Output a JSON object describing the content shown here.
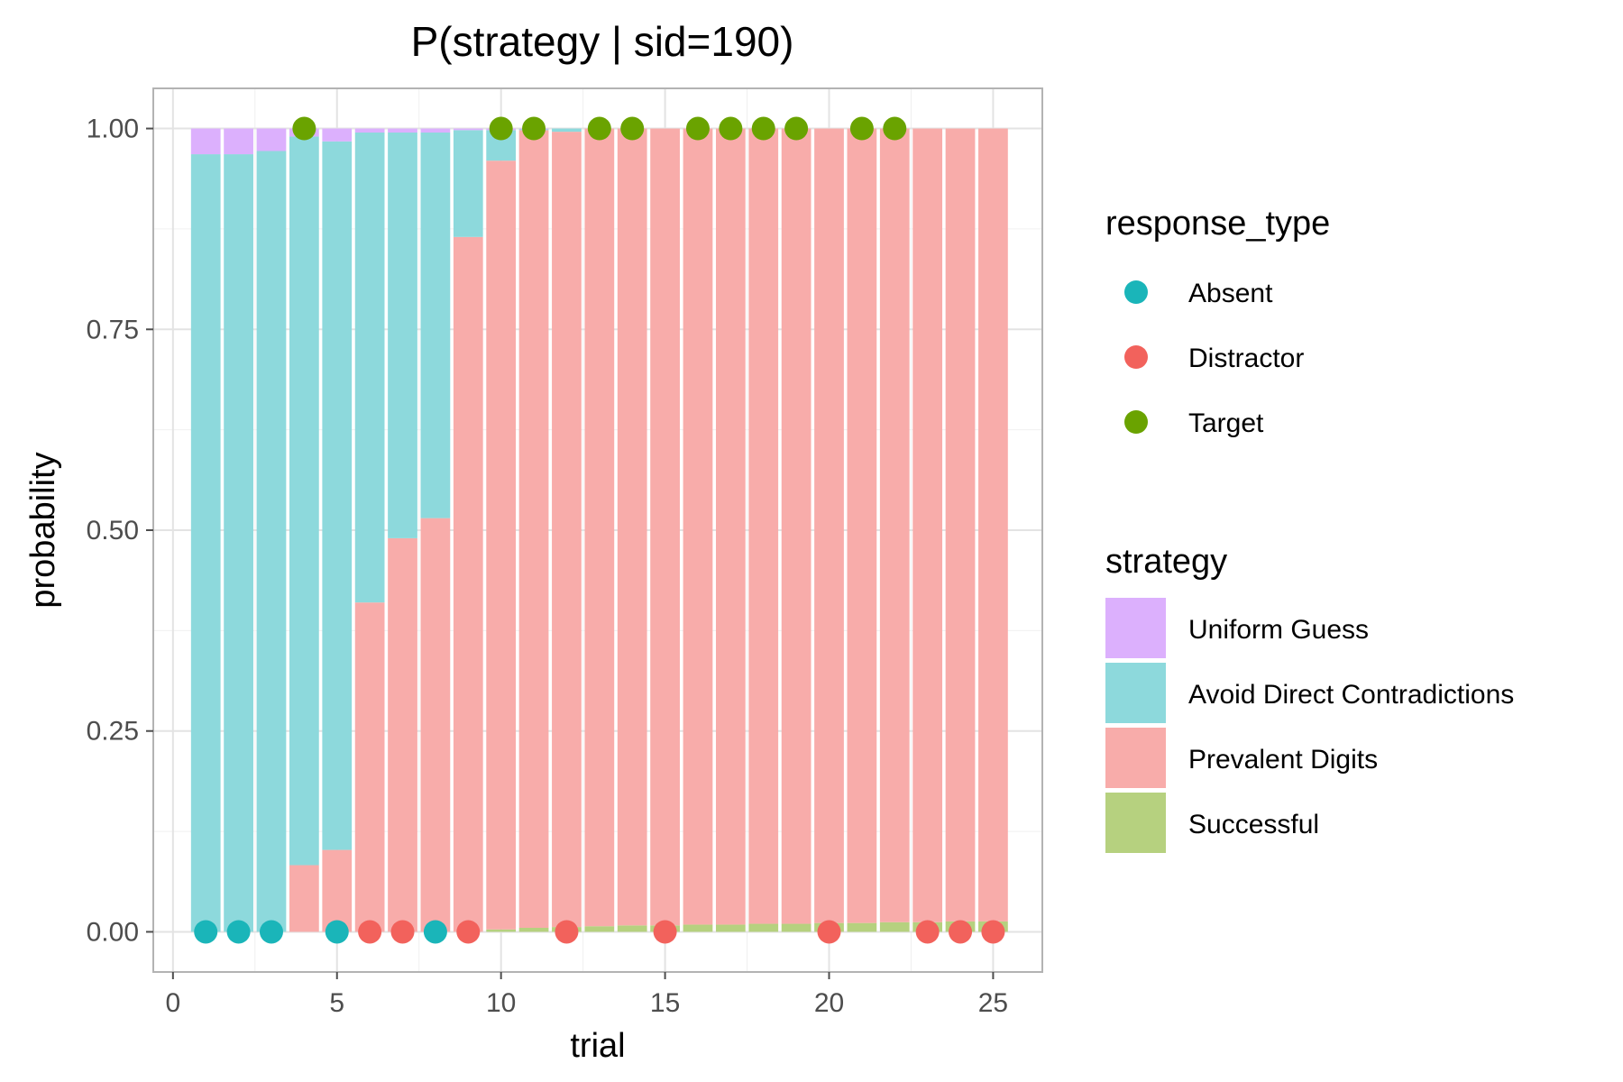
{
  "chart_data": {
    "type": "bar",
    "subtype": "stacked-bar-with-points",
    "title": "P(strategy | sid=190)",
    "xlabel": "trial",
    "ylabel": "probability",
    "xlim": [
      -0.6,
      26.5
    ],
    "ylim": [
      -0.05,
      1.05
    ],
    "x_ticks": [
      0,
      5,
      10,
      15,
      20,
      25
    ],
    "x_tick_labels": [
      "0",
      "5",
      "10",
      "15",
      "20",
      "25"
    ],
    "y_ticks": [
      0,
      0.25,
      0.5,
      0.75,
      1
    ],
    "y_tick_labels": [
      "0.00",
      "0.25",
      "0.50",
      "0.75",
      "1.00"
    ],
    "grid": true,
    "legend_position": "right",
    "x": [
      1,
      2,
      3,
      4,
      5,
      6,
      7,
      8,
      9,
      10,
      11,
      12,
      13,
      14,
      15,
      16,
      17,
      18,
      19,
      20,
      21,
      22,
      23,
      24,
      25
    ],
    "series": [
      {
        "name": "Successful",
        "color": "#b6d17f",
        "values": [
          0,
          0,
          0,
          0,
          0,
          0,
          0,
          0,
          0,
          0.003,
          0.005,
          0.006,
          0.007,
          0.008,
          0.008,
          0.009,
          0.009,
          0.01,
          0.01,
          0.011,
          0.011,
          0.012,
          0.012,
          0.013,
          0.013
        ]
      },
      {
        "name": "Prevalent Digits",
        "color": "#f8acaa",
        "values": [
          0,
          0,
          0,
          0.083,
          0.102,
          0.41,
          0.49,
          0.515,
          0.865,
          0.957,
          0.993,
          0.99,
          0.993,
          0.992,
          0.992,
          0.991,
          0.991,
          0.99,
          0.99,
          0.989,
          0.989,
          0.988,
          0.988,
          0.987,
          0.987
        ]
      },
      {
        "name": "Avoid Direct Contradictions",
        "color": "#8dd9dc",
        "values": [
          0.968,
          0.968,
          0.972,
          0.907,
          0.882,
          0.585,
          0.505,
          0.48,
          0.133,
          0.038,
          0.001,
          0.004,
          0,
          0,
          0,
          0,
          0,
          0,
          0,
          0,
          0,
          0,
          0,
          0,
          0
        ]
      },
      {
        "name": "Uniform Guess",
        "color": "#dcb0fd",
        "values": [
          0.032,
          0.032,
          0.028,
          0.01,
          0.016,
          0.005,
          0.005,
          0.005,
          0.002,
          0.002,
          0.001,
          0,
          0,
          0,
          0,
          0,
          0,
          0,
          0,
          0,
          0,
          0,
          0,
          0,
          0
        ]
      }
    ],
    "points": [
      {
        "x": 1,
        "y": 0,
        "response": "Absent"
      },
      {
        "x": 2,
        "y": 0,
        "response": "Absent"
      },
      {
        "x": 3,
        "y": 0,
        "response": "Absent"
      },
      {
        "x": 4,
        "y": 1,
        "response": "Target"
      },
      {
        "x": 5,
        "y": 0,
        "response": "Absent"
      },
      {
        "x": 6,
        "y": 0,
        "response": "Distractor"
      },
      {
        "x": 7,
        "y": 0,
        "response": "Distractor"
      },
      {
        "x": 8,
        "y": 0,
        "response": "Absent"
      },
      {
        "x": 9,
        "y": 0,
        "response": "Distractor"
      },
      {
        "x": 10,
        "y": 1,
        "response": "Target"
      },
      {
        "x": 11,
        "y": 1,
        "response": "Target"
      },
      {
        "x": 12,
        "y": 0,
        "response": "Distractor"
      },
      {
        "x": 13,
        "y": 1,
        "response": "Target"
      },
      {
        "x": 14,
        "y": 1,
        "response": "Target"
      },
      {
        "x": 15,
        "y": 0,
        "response": "Distractor"
      },
      {
        "x": 16,
        "y": 1,
        "response": "Target"
      },
      {
        "x": 17,
        "y": 1,
        "response": "Target"
      },
      {
        "x": 18,
        "y": 1,
        "response": "Target"
      },
      {
        "x": 19,
        "y": 1,
        "response": "Target"
      },
      {
        "x": 20,
        "y": 0,
        "response": "Distractor"
      },
      {
        "x": 21,
        "y": 1,
        "response": "Target"
      },
      {
        "x": 22,
        "y": 1,
        "response": "Target"
      },
      {
        "x": 23,
        "y": 0,
        "response": "Distractor"
      },
      {
        "x": 24,
        "y": 0,
        "response": "Distractor"
      },
      {
        "x": 25,
        "y": 0,
        "response": "Distractor"
      }
    ],
    "legend_response": {
      "title": "response_type",
      "entries": [
        {
          "label": "Absent",
          "color": "#1ab5b9"
        },
        {
          "label": "Distractor",
          "color": "#f2625c"
        },
        {
          "label": "Target",
          "color": "#6aa300"
        }
      ]
    },
    "legend_strategy": {
      "title": "strategy",
      "entries": [
        {
          "label": "Uniform Guess",
          "color": "#dcb0fd"
        },
        {
          "label": "Avoid Direct Contradictions",
          "color": "#8dd9dc"
        },
        {
          "label": "Prevalent Digits",
          "color": "#f8acaa"
        },
        {
          "label": "Successful",
          "color": "#b6d17f"
        }
      ]
    }
  }
}
